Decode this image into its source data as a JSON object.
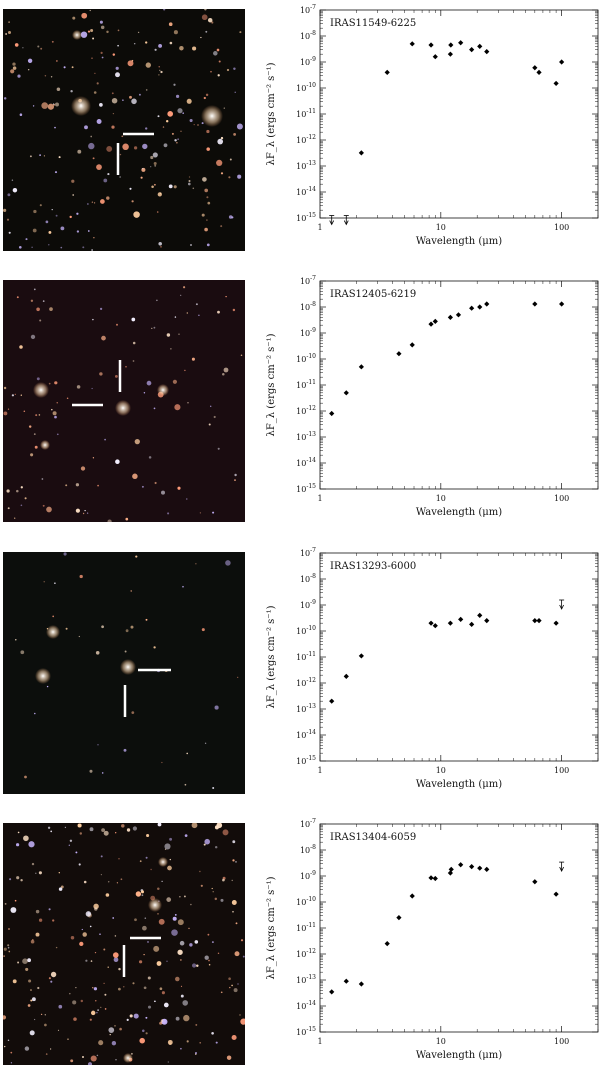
{
  "chart_data": [
    {
      "type": "scatter",
      "title": "IRAS11549-6225",
      "xlabel": "Wavelength (μm)",
      "ylabel": "λF_λ (ergs cm⁻² s⁻¹)",
      "xscale": "log",
      "yscale": "log",
      "xlim": [
        1,
        200
      ],
      "ylim": [
        1e-15,
        1e-07
      ],
      "x_ticks": [
        "1",
        "10",
        "100"
      ],
      "y_ticks": [
        "10^-15",
        "10^-14",
        "10^-13",
        "10^-12",
        "10^-11",
        "10^-10",
        "10^-9",
        "10^-8",
        "10^-7"
      ],
      "points": [
        {
          "x": 2.2,
          "y": 3.2e-13
        },
        {
          "x": 3.6,
          "y": 4e-10
        },
        {
          "x": 5.8,
          "y": 5e-09
        },
        {
          "x": 8.3,
          "y": 4.5e-09
        },
        {
          "x": 9,
          "y": 1.6e-09
        },
        {
          "x": 12,
          "y": 2e-09
        },
        {
          "x": 12.1,
          "y": 4.5e-09
        },
        {
          "x": 14.6,
          "y": 5.5e-09
        },
        {
          "x": 18,
          "y": 3e-09
        },
        {
          "x": 21,
          "y": 4e-09
        },
        {
          "x": 24,
          "y": 2.5e-09
        },
        {
          "x": 60,
          "y": 6e-10
        },
        {
          "x": 65,
          "y": 4e-10
        },
        {
          "x": 90,
          "y": 1.5e-10
        },
        {
          "x": 100,
          "y": 1e-09
        }
      ],
      "upper_limits": [
        {
          "x": 1.25,
          "y": 8e-16
        },
        {
          "x": 1.65,
          "y": 8e-16
        }
      ]
    },
    {
      "type": "scatter",
      "title": "IRAS12405-6219",
      "xlabel": "Wavelength (μm)",
      "ylabel": "λF_λ (ergs cm⁻² s⁻¹)",
      "xscale": "log",
      "yscale": "log",
      "xlim": [
        1,
        200
      ],
      "ylim": [
        1e-15,
        1e-07
      ],
      "x_ticks": [
        "1",
        "10",
        "100"
      ],
      "y_ticks": [
        "10^-15",
        "10^-14",
        "10^-13",
        "10^-12",
        "10^-11",
        "10^-10",
        "10^-9",
        "10^-8",
        "10^-7"
      ],
      "points": [
        {
          "x": 1.25,
          "y": 8e-13
        },
        {
          "x": 1.65,
          "y": 5e-12
        },
        {
          "x": 2.2,
          "y": 5e-11
        },
        {
          "x": 4.5,
          "y": 1.6e-10
        },
        {
          "x": 5.8,
          "y": 3.5e-10
        },
        {
          "x": 8.3,
          "y": 2.2e-09
        },
        {
          "x": 9,
          "y": 2.8e-09
        },
        {
          "x": 12,
          "y": 4e-09
        },
        {
          "x": 14,
          "y": 5e-09
        },
        {
          "x": 18,
          "y": 9e-09
        },
        {
          "x": 21,
          "y": 1e-08
        },
        {
          "x": 24,
          "y": 1.3e-08
        },
        {
          "x": 60,
          "y": 1.3e-08
        },
        {
          "x": 100,
          "y": 1.3e-08
        }
      ],
      "upper_limits": []
    },
    {
      "type": "scatter",
      "title": "IRAS13293-6000",
      "xlabel": "Wavelength (μm)",
      "ylabel": "λF_λ (ergs cm⁻² s⁻¹)",
      "xscale": "log",
      "yscale": "log",
      "xlim": [
        1,
        200
      ],
      "ylim": [
        1e-15,
        1e-07
      ],
      "x_ticks": [
        "1",
        "10",
        "100"
      ],
      "y_ticks": [
        "10^-15",
        "10^-14",
        "10^-13",
        "10^-12",
        "10^-11",
        "10^-10",
        "10^-9",
        "10^-8",
        "10^-7"
      ],
      "points": [
        {
          "x": 1.25,
          "y": 2e-13
        },
        {
          "x": 1.65,
          "y": 1.8e-12
        },
        {
          "x": 2.2,
          "y": 1.1e-11
        },
        {
          "x": 8.3,
          "y": 2e-10
        },
        {
          "x": 9,
          "y": 1.6e-10
        },
        {
          "x": 12,
          "y": 2e-10
        },
        {
          "x": 14.6,
          "y": 2.8e-10
        },
        {
          "x": 18,
          "y": 1.8e-10
        },
        {
          "x": 21,
          "y": 4e-10
        },
        {
          "x": 24,
          "y": 2.5e-10
        },
        {
          "x": 60,
          "y": 2.5e-10
        },
        {
          "x": 65,
          "y": 2.5e-10
        },
        {
          "x": 90,
          "y": 2e-10
        }
      ],
      "upper_limits": [
        {
          "x": 100,
          "y": 1e-09
        }
      ]
    },
    {
      "type": "scatter",
      "title": "IRAS13404-6059",
      "xlabel": "Wavelength (μm)",
      "ylabel": "λF_λ (ergs cm⁻² s⁻¹)",
      "xscale": "log",
      "yscale": "log",
      "xlim": [
        1,
        200
      ],
      "ylim": [
        1e-15,
        1e-07
      ],
      "x_ticks": [
        "1",
        "10",
        "100"
      ],
      "y_ticks": [
        "10^-15",
        "10^-14",
        "10^-13",
        "10^-12",
        "10^-11",
        "10^-10",
        "10^-9",
        "10^-8",
        "10^-7"
      ],
      "points": [
        {
          "x": 1.25,
          "y": 3.5e-14
        },
        {
          "x": 1.65,
          "y": 9e-14
        },
        {
          "x": 2.2,
          "y": 7e-14
        },
        {
          "x": 3.6,
          "y": 2.5e-12
        },
        {
          "x": 4.5,
          "y": 2.5e-11
        },
        {
          "x": 5.8,
          "y": 1.7e-10
        },
        {
          "x": 8.3,
          "y": 8.5e-10
        },
        {
          "x": 9,
          "y": 8e-10
        },
        {
          "x": 12,
          "y": 1.3e-09
        },
        {
          "x": 12.2,
          "y": 1.8e-09
        },
        {
          "x": 14.6,
          "y": 2.7e-09
        },
        {
          "x": 18,
          "y": 2.3e-09
        },
        {
          "x": 21,
          "y": 2e-09
        },
        {
          "x": 24,
          "y": 1.8e-09
        },
        {
          "x": 60,
          "y": 6e-10
        },
        {
          "x": 90,
          "y": 2e-10
        }
      ],
      "upper_limits": [
        {
          "x": 100,
          "y": 2.2e-09
        }
      ]
    }
  ],
  "images": [
    {
      "background": "#0c0b08",
      "marker_color": "#ffffff"
    },
    {
      "background": "#1a0c10",
      "marker_color": "#ffffff"
    },
    {
      "background": "#0c0e0c",
      "marker_color": "#ffffff"
    },
    {
      "background": "#120c0a",
      "marker_color": "#ffffff"
    }
  ]
}
